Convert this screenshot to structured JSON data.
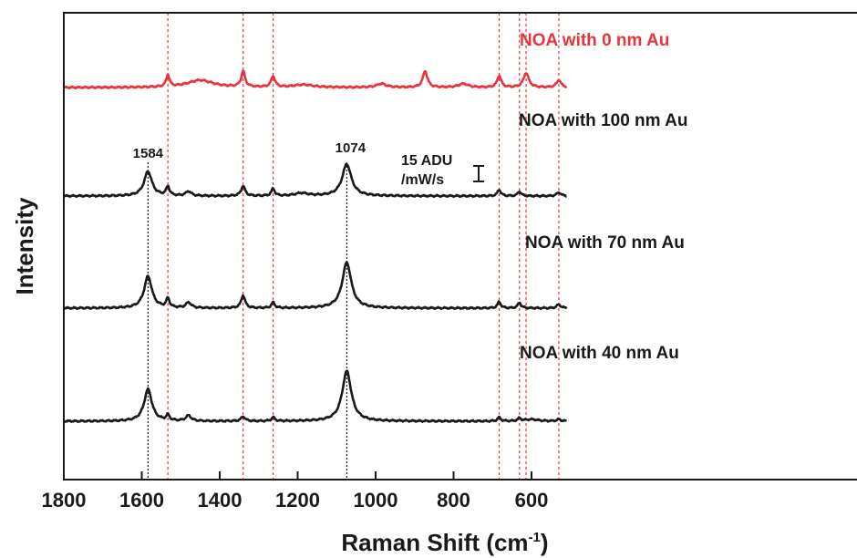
{
  "chart_data": {
    "type": "line",
    "title": "",
    "xlabel": "Raman Shift (cm",
    "xlabel_sup": "-1",
    "xlabel_suffix": ")",
    "ylabel": "Intensity",
    "xlim": [
      1800,
      510
    ],
    "x_ticks": [
      1800,
      1600,
      1400,
      1200,
      1000,
      800,
      600
    ],
    "grid": false,
    "reference_lines_red": [
      1533,
      1340,
      1263,
      683,
      631,
      614,
      530
    ],
    "reference_lines_black": [
      1584,
      1074
    ],
    "peak_labels": [
      {
        "x": 1584,
        "text": "1584"
      },
      {
        "x": 1074,
        "text": "1074"
      }
    ],
    "scale_bar": {
      "line1": "15 ADU",
      "line2": "/mW/s",
      "value_adu_per_mW_s": 15
    },
    "series": [
      {
        "name": "NOA with 0 nm Au",
        "color": "#e8343c",
        "baseline": 96,
        "peaks": [
          [
            1533,
            13,
            5
          ],
          [
            1450,
            8,
            40
          ],
          [
            1340,
            17,
            6
          ],
          [
            1263,
            12,
            6
          ],
          [
            1185,
            3,
            30
          ],
          [
            985,
            4,
            15
          ],
          [
            873,
            18,
            7
          ],
          [
            775,
            4,
            15
          ],
          [
            683,
            13,
            6
          ],
          [
            614,
            16,
            8
          ],
          [
            530,
            8,
            7
          ]
        ]
      },
      {
        "name": "NOA with 100 nm Au",
        "color": "#1a1a1a",
        "baseline": 215,
        "peaks": [
          [
            1584,
            27,
            12
          ],
          [
            1533,
            10,
            5
          ],
          [
            1480,
            5,
            8
          ],
          [
            1340,
            11,
            6
          ],
          [
            1263,
            8,
            5
          ],
          [
            1190,
            3,
            20
          ],
          [
            1074,
            35,
            14
          ],
          [
            683,
            7,
            5
          ],
          [
            631,
            5,
            5
          ],
          [
            530,
            4,
            6
          ]
        ]
      },
      {
        "name": "NOA with 70 nm Au",
        "color": "#1a1a1a",
        "baseline": 338,
        "peaks": [
          [
            1584,
            35,
            12
          ],
          [
            1533,
            10,
            5
          ],
          [
            1480,
            6,
            8
          ],
          [
            1340,
            14,
            6
          ],
          [
            1263,
            6,
            5
          ],
          [
            1074,
            50,
            14
          ],
          [
            683,
            7,
            5
          ],
          [
            631,
            6,
            5
          ],
          [
            530,
            4,
            6
          ]
        ]
      },
      {
        "name": "NOA with 40 nm Au",
        "color": "#1a1a1a",
        "baseline": 462,
        "peaks": [
          [
            1584,
            35,
            12
          ],
          [
            1533,
            6,
            5
          ],
          [
            1480,
            6,
            8
          ],
          [
            1340,
            5,
            6
          ],
          [
            1263,
            4,
            5
          ],
          [
            1074,
            55,
            14
          ],
          [
            683,
            4,
            5
          ],
          [
            631,
            3,
            5
          ],
          [
            600,
            2,
            20
          ],
          [
            530,
            2,
            6
          ]
        ]
      }
    ]
  }
}
